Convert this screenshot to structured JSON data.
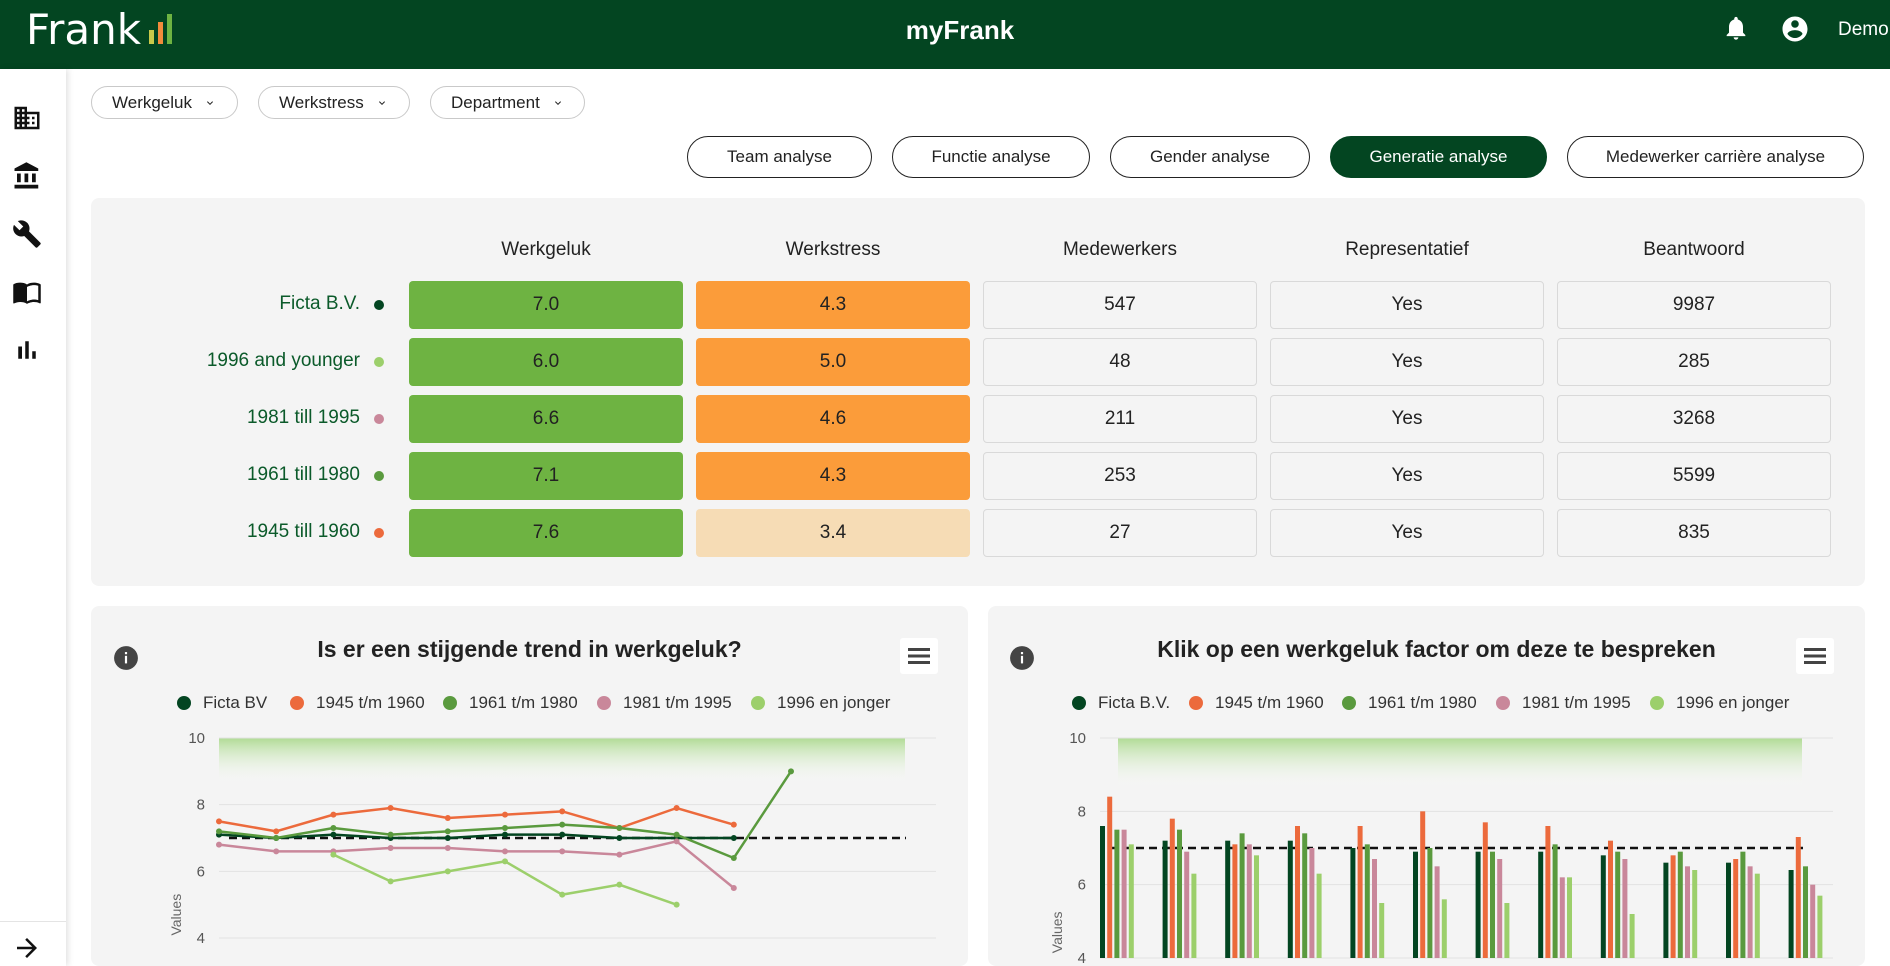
{
  "topbar": {
    "logo_text": "Frank",
    "app_title": "myFrank",
    "user_name": "Demo",
    "bar_colors": [
      "#c9c94a",
      "#f28b3c",
      "#6eb342"
    ]
  },
  "filters": [
    {
      "label": "Werkgeluk"
    },
    {
      "label": "Werkstress"
    },
    {
      "label": "Department"
    }
  ],
  "tabs": [
    {
      "label": "Team analyse",
      "active": false
    },
    {
      "label": "Functie analyse",
      "active": false
    },
    {
      "label": "Gender analyse",
      "active": false
    },
    {
      "label": "Generatie analyse",
      "active": true
    },
    {
      "label": "Medewerker carrière analyse",
      "active": false
    }
  ],
  "table": {
    "headers": [
      "Werkgeluk",
      "Werkstress",
      "Medewerkers",
      "Representatief",
      "Beantwoord"
    ],
    "rows": [
      {
        "label": "Ficta B.V.",
        "dot": "#034521",
        "werkgeluk": "7.0",
        "werkstress": "4.3",
        "stress_level": "orange",
        "medewerkers": "547",
        "representatief": "Yes",
        "beantwoord": "9987"
      },
      {
        "label": "1996 and younger",
        "dot": "#9ccf6b",
        "werkgeluk": "6.0",
        "werkstress": "5.0",
        "stress_level": "orange",
        "medewerkers": "48",
        "representatief": "Yes",
        "beantwoord": "285"
      },
      {
        "label": "1981 till 1995",
        "dot": "#c9879a",
        "werkgeluk": "6.6",
        "werkstress": "4.6",
        "stress_level": "orange",
        "medewerkers": "211",
        "representatief": "Yes",
        "beantwoord": "3268"
      },
      {
        "label": "1961 till 1980",
        "dot": "#5a9a3e",
        "werkgeluk": "7.1",
        "werkstress": "4.3",
        "stress_level": "orange",
        "medewerkers": "253",
        "representatief": "Yes",
        "beantwoord": "5599"
      },
      {
        "label": "1945 till 1960",
        "dot": "#ec6a3c",
        "werkgeluk": "7.6",
        "werkstress": "3.4",
        "stress_level": "light",
        "medewerkers": "27",
        "representatief": "Yes",
        "beantwoord": "835"
      }
    ]
  },
  "line_chart": {
    "title": "Is er een stijgende trend in werkgeluk?",
    "legend": [
      {
        "name": "Ficta BV",
        "color": "#034521"
      },
      {
        "name": "1945 t/m 1960",
        "color": "#ec6a3c"
      },
      {
        "name": "1961 t/m 1980",
        "color": "#5a9a3e"
      },
      {
        "name": "1981 t/m 1995",
        "color": "#c9879a"
      },
      {
        "name": "1996 en jonger",
        "color": "#9ccf6b"
      }
    ]
  },
  "bar_chart": {
    "title": "Klik op een werkgeluk factor om deze te bespreken",
    "legend": [
      {
        "name": "Ficta B.V.",
        "color": "#034521"
      },
      {
        "name": "1945 t/m 1960",
        "color": "#ec6a3c"
      },
      {
        "name": "1961 t/m 1980",
        "color": "#5a9a3e"
      },
      {
        "name": "1981 t/m 1995",
        "color": "#c9879a"
      },
      {
        "name": "1996 en jonger",
        "color": "#9ccf6b"
      }
    ]
  },
  "chart_data": [
    {
      "type": "line",
      "title": "Is er een stijgende trend in werkgeluk?",
      "xlabel": "",
      "ylabel": "Values",
      "ylim": [
        4,
        10
      ],
      "yticks": [
        "10",
        "8",
        "6",
        "4"
      ],
      "reference_line": 7.0,
      "series": [
        {
          "name": "Ficta BV",
          "color": "#034521",
          "values": [
            7.1,
            7.0,
            7.1,
            7.0,
            7.0,
            7.1,
            7.1,
            7.0,
            7.0,
            7.0
          ]
        },
        {
          "name": "1945 t/m 1960",
          "color": "#ec6a3c",
          "values": [
            7.5,
            7.2,
            7.7,
            7.9,
            7.6,
            7.7,
            7.8,
            7.3,
            7.9,
            7.4
          ]
        },
        {
          "name": "1961 t/m 1980",
          "color": "#5a9a3e",
          "values": [
            7.2,
            7.0,
            7.3,
            7.1,
            7.2,
            7.3,
            7.4,
            7.3,
            7.1,
            6.4,
            9.0
          ]
        },
        {
          "name": "1981 t/m 1995",
          "color": "#c9879a",
          "values": [
            6.8,
            6.6,
            6.6,
            6.7,
            6.7,
            6.6,
            6.6,
            6.5,
            6.9,
            5.5
          ]
        },
        {
          "name": "1996 en jonger",
          "color": "#9ccf6b",
          "values": [
            null,
            null,
            6.5,
            5.7,
            6.0,
            6.3,
            5.3,
            5.6,
            5.0
          ]
        }
      ]
    },
    {
      "type": "bar",
      "title": "Klik op een werkgeluk factor om deze te bespreken",
      "xlabel": "",
      "ylabel": "Values",
      "ylim": [
        4,
        10
      ],
      "yticks": [
        "10",
        "8",
        "6",
        "4"
      ],
      "reference_line": 7.0,
      "series": [
        {
          "name": "Ficta B.V.",
          "color": "#034521",
          "values": [
            7.6,
            7.2,
            7.2,
            7.2,
            7.0,
            6.9,
            6.9,
            6.9,
            6.8,
            6.6,
            6.6,
            6.4
          ]
        },
        {
          "name": "1945 t/m 1960",
          "color": "#ec6a3c",
          "values": [
            8.4,
            7.8,
            7.1,
            7.6,
            7.6,
            8.0,
            7.7,
            7.6,
            7.2,
            6.8,
            6.7,
            7.3
          ]
        },
        {
          "name": "1961 t/m 1980",
          "color": "#5a9a3e",
          "values": [
            7.5,
            7.5,
            7.4,
            7.4,
            7.1,
            7.0,
            6.9,
            7.1,
            6.9,
            6.9,
            6.9,
            6.5
          ]
        },
        {
          "name": "1981 t/m 1995",
          "color": "#c9879a",
          "values": [
            7.5,
            6.9,
            7.1,
            7.0,
            6.7,
            6.5,
            6.7,
            6.2,
            6.7,
            6.5,
            6.5,
            6.0
          ]
        },
        {
          "name": "1996 en jonger",
          "color": "#9ccf6b",
          "values": [
            7.1,
            6.3,
            6.8,
            6.3,
            5.5,
            5.6,
            5.5,
            6.2,
            5.2,
            6.4,
            6.3,
            5.7
          ]
        }
      ]
    }
  ]
}
